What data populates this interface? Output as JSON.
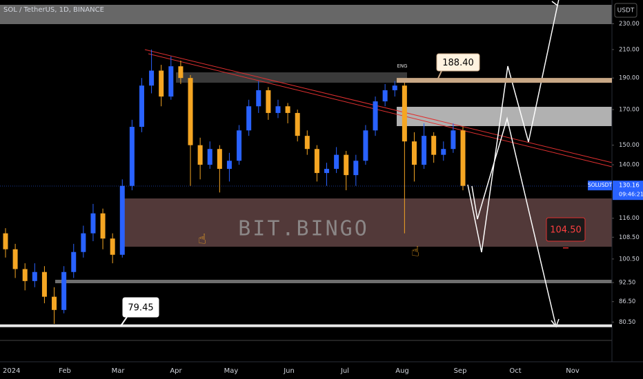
{
  "chart_data": {
    "type": "candlestick",
    "title": "SOL / TetherUS, 1D, BINANCE",
    "currency": "USDT",
    "symbol": "SOLUSDT",
    "last_price": 130.16,
    "countdown": "09:46:21",
    "watermark": "BIT.BINGO",
    "note": "ENG",
    "x_labels": [
      "2024",
      "Feb",
      "Mar",
      "Apr",
      "May",
      "Jun",
      "Jul",
      "Aug",
      "Sep",
      "Oct",
      "Nov"
    ],
    "log_scale": true,
    "grid": false,
    "up_color": "#2962ff",
    "down_color": "#f5a623",
    "ylim": [
      70,
      250
    ],
    "yticks": [
      {
        "value": 230,
        "label": "230.00"
      },
      {
        "value": 210,
        "label": "210.00"
      },
      {
        "value": 190,
        "label": "190.00"
      },
      {
        "value": 170,
        "label": "170.00"
      },
      {
        "value": 150,
        "label": "150.00"
      },
      {
        "value": 140,
        "label": "140.00"
      },
      {
        "value": 116,
        "label": "116.00"
      },
      {
        "value": 108.5,
        "label": "108.50"
      },
      {
        "value": 100.5,
        "label": "100.50"
      },
      {
        "value": 92.5,
        "label": "92.50"
      },
      {
        "value": 86.5,
        "label": "86.50"
      },
      {
        "value": 80.5,
        "label": "80.50"
      }
    ],
    "levels": [
      {
        "value": 188.4,
        "label": "188.40"
      },
      {
        "value": 104.5,
        "label": "104.50"
      },
      79.45
    ],
    "open": [
      110,
      104,
      97,
      93,
      96,
      88,
      84,
      96,
      103,
      110,
      118,
      108,
      102,
      130,
      160,
      185,
      195,
      178,
      198,
      190,
      150,
      140,
      148,
      138,
      142,
      158,
      172,
      182,
      168,
      172,
      168,
      155,
      148,
      136,
      138,
      145,
      135,
      142,
      158,
      175,
      182,
      185,
      152,
      140,
      155,
      145,
      148,
      158
    ],
    "high": [
      112,
      106,
      99,
      99,
      98,
      91,
      98,
      106,
      113,
      122,
      120,
      110,
      133,
      164,
      190,
      210,
      199,
      205,
      202,
      192,
      154,
      152,
      150,
      146,
      161,
      176,
      188,
      184,
      176,
      174,
      170,
      158,
      150,
      141,
      149,
      147,
      145,
      161,
      178,
      186,
      188,
      187,
      157,
      162,
      157,
      152,
      162,
      160
    ],
    "low": [
      101,
      94,
      90,
      91,
      86,
      80,
      83,
      94,
      101,
      107,
      104,
      99,
      101,
      128,
      157,
      180,
      172,
      176,
      186,
      130,
      133,
      138,
      127,
      132,
      140,
      155,
      168,
      164,
      165,
      162,
      152,
      145,
      132,
      130,
      136,
      128,
      130,
      140,
      155,
      172,
      178,
      110,
      132,
      138,
      141,
      142,
      146,
      128
    ],
    "close": [
      104,
      97,
      93,
      96,
      88,
      84,
      96,
      103,
      110,
      118,
      108,
      102,
      130,
      160,
      185,
      195,
      178,
      198,
      190,
      150,
      140,
      148,
      138,
      142,
      158,
      172,
      182,
      168,
      172,
      168,
      155,
      148,
      136,
      138,
      145,
      135,
      142,
      158,
      175,
      182,
      185,
      152,
      140,
      155,
      145,
      148,
      158,
      130
    ]
  }
}
